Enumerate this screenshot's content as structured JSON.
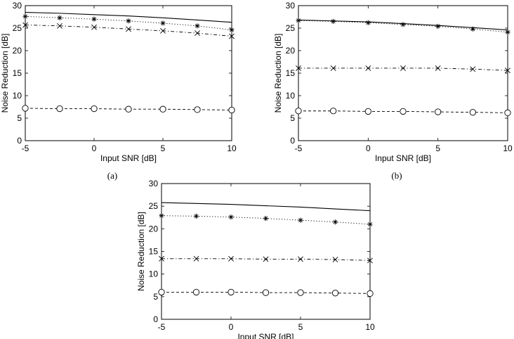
{
  "chart_data": [
    {
      "type": "line",
      "caption": "(a)",
      "xlabel": "Input SNR [dB]",
      "ylabel": "Noise Reduction [dB]",
      "xlim": [
        -5,
        10
      ],
      "ylim": [
        0,
        30
      ],
      "xticks": [
        -5,
        0,
        5,
        10
      ],
      "yticks": [
        0,
        5,
        10,
        15,
        20,
        25,
        30
      ],
      "grid": false,
      "x": [
        -5,
        -2.5,
        0,
        2.5,
        5,
        7.5,
        10
      ],
      "series": [
        {
          "style": "solid",
          "marker": "none",
          "values": [
            28.5,
            28.3,
            28.0,
            27.7,
            27.3,
            26.8,
            26.3
          ]
        },
        {
          "style": "dotted",
          "marker": "star",
          "values": [
            27.6,
            27.3,
            27.0,
            26.6,
            26.1,
            25.5,
            24.6
          ]
        },
        {
          "style": "dashdot",
          "marker": "x",
          "values": [
            25.7,
            25.5,
            25.2,
            24.8,
            24.4,
            23.9,
            23.2
          ]
        },
        {
          "style": "dashed",
          "marker": "circle",
          "values": [
            7.2,
            7.1,
            7.1,
            7.0,
            7.0,
            6.9,
            6.8
          ]
        }
      ]
    },
    {
      "type": "line",
      "caption": "(b)",
      "xlabel": "Input SNR [dB]",
      "ylabel": "Noise Reduction [dB]",
      "xlim": [
        -5,
        10
      ],
      "ylim": [
        0,
        30
      ],
      "xticks": [
        -5,
        0,
        5,
        10
      ],
      "yticks": [
        0,
        5,
        10,
        15,
        20,
        25,
        30
      ],
      "grid": false,
      "x": [
        -5,
        -2.5,
        0,
        2.5,
        5,
        7.5,
        10
      ],
      "series": [
        {
          "style": "solid",
          "marker": "none",
          "values": [
            26.8,
            26.6,
            26.4,
            26.0,
            25.6,
            25.1,
            24.6
          ]
        },
        {
          "style": "dotted",
          "marker": "star",
          "values": [
            26.7,
            26.5,
            26.2,
            25.8,
            25.4,
            24.8,
            24.1
          ]
        },
        {
          "style": "dashdot",
          "marker": "x",
          "values": [
            16.1,
            16.1,
            16.1,
            16.1,
            16.1,
            15.9,
            15.6
          ]
        },
        {
          "style": "dashed",
          "marker": "circle",
          "values": [
            6.6,
            6.6,
            6.5,
            6.5,
            6.4,
            6.3,
            6.2
          ]
        }
      ]
    },
    {
      "type": "line",
      "caption": "",
      "xlabel": "Input SNR [dB]",
      "ylabel": "Noise Reduction [dB]",
      "xlim": [
        -5,
        10
      ],
      "ylim": [
        0,
        30
      ],
      "xticks": [
        -5,
        0,
        5,
        10
      ],
      "yticks": [
        0,
        5,
        10,
        15,
        20,
        25,
        30
      ],
      "grid": false,
      "x": [
        -5,
        -2.5,
        0,
        2.5,
        5,
        7.5,
        10
      ],
      "series": [
        {
          "style": "solid",
          "marker": "none",
          "values": [
            25.8,
            25.6,
            25.4,
            25.1,
            24.8,
            24.4,
            24.0
          ]
        },
        {
          "style": "dotted",
          "marker": "star",
          "values": [
            22.9,
            22.8,
            22.6,
            22.3,
            21.9,
            21.5,
            21.0
          ]
        },
        {
          "style": "dashdot",
          "marker": "x",
          "values": [
            13.4,
            13.4,
            13.4,
            13.3,
            13.3,
            13.2,
            13.0
          ]
        },
        {
          "style": "dashed",
          "marker": "circle",
          "values": [
            6.0,
            6.0,
            6.0,
            5.9,
            5.9,
            5.8,
            5.7
          ]
        }
      ]
    }
  ]
}
